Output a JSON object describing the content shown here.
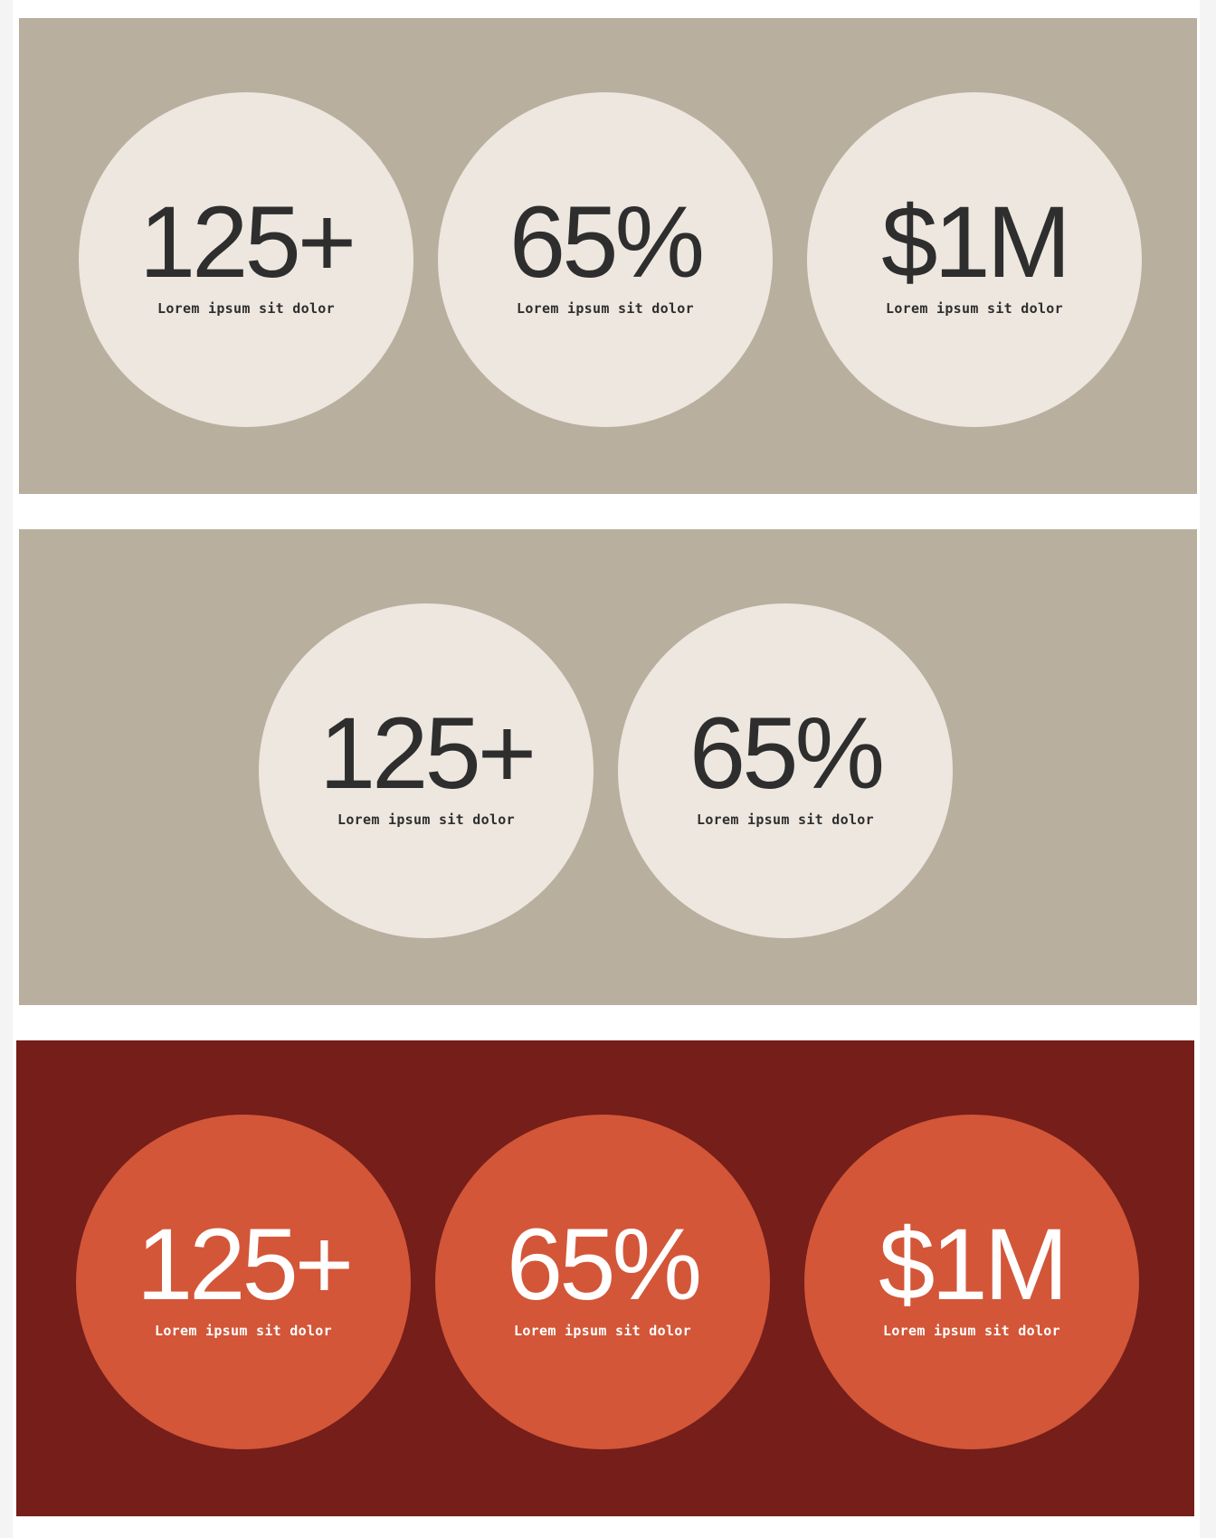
{
  "colors": {
    "outer_background": "#f4f4f4",
    "page_background": "#ffffff",
    "light_panel": "#b9af9e",
    "light_circle": "#ede7df",
    "light_text": "#2e2e2e",
    "dark_panel": "#751e1a",
    "dark_circle": "#d35638",
    "dark_text": "#ffffff"
  },
  "sections": [
    {
      "theme": "light",
      "stats": [
        {
          "value": "125+",
          "label": "Lorem ipsum sit dolor"
        },
        {
          "value": "65%",
          "label": "Lorem ipsum sit dolor"
        },
        {
          "value": "$1M",
          "label": "Lorem ipsum sit dolor"
        }
      ]
    },
    {
      "theme": "light",
      "stats": [
        {
          "value": "125+",
          "label": "Lorem ipsum sit dolor"
        },
        {
          "value": "65%",
          "label": "Lorem ipsum sit dolor"
        }
      ]
    },
    {
      "theme": "dark",
      "stats": [
        {
          "value": "125+",
          "label": "Lorem ipsum sit dolor"
        },
        {
          "value": "65%",
          "label": "Lorem ipsum sit dolor"
        },
        {
          "value": "$1M",
          "label": "Lorem ipsum sit dolor"
        }
      ]
    }
  ]
}
